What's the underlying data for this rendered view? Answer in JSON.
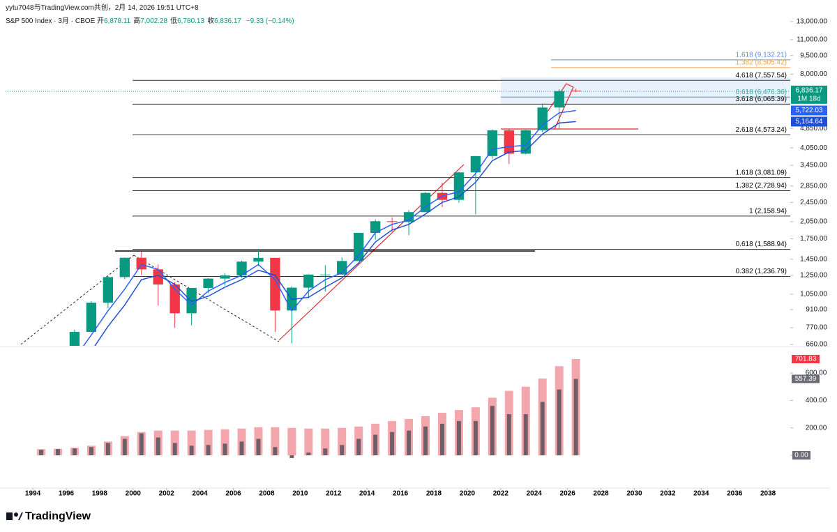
{
  "header": {
    "attribution": "yytu7048与TradingView.com共创，2月 14, 2026 19:51 UTC+8",
    "symbol": "S&P 500 Index · 3月 · CBOE",
    "ohlc": [
      {
        "label": "开",
        "value": "6,878.11"
      },
      {
        "label": "高",
        "value": "7,002.28"
      },
      {
        "label": "低",
        "value": "6,780.13"
      },
      {
        "label": "收",
        "value": "6,836.17"
      }
    ],
    "change": "−9.33 (−0.14%)"
  },
  "chart_data": [
    {
      "type": "candlestick",
      "log_scale": true,
      "up_color": "#089981",
      "down_color": "#f23645",
      "x": [
        1994,
        1995,
        1996,
        1997,
        1998,
        1999,
        2000,
        2001,
        2002,
        2003,
        2004,
        2005,
        2006,
        2007,
        2008,
        2009,
        2010,
        2011,
        2012,
        2013,
        2014,
        2015,
        2016,
        2017,
        2018,
        2019,
        2020,
        2021,
        2022,
        2023,
        2024,
        2025,
        2026
      ],
      "open": [
        466,
        459,
        616,
        741,
        970,
        1229,
        1469,
        1320,
        1148,
        880,
        1112,
        1212,
        1248,
        1418,
        1468,
        903,
        1115,
        1258,
        1258,
        1426,
        1848,
        2059,
        2044,
        2239,
        2674,
        2507,
        3231,
        3756,
        4766,
        3840,
        4770,
        5882,
        6878.11
      ],
      "high": [
        482,
        621,
        757,
        983,
        1244,
        1473,
        1553,
        1383,
        1176,
        1112,
        1217,
        1275,
        1431,
        1576,
        1471,
        1130,
        1263,
        1371,
        1475,
        1849,
        2094,
        2135,
        2277,
        2695,
        2941,
        3248,
        3760,
        4808,
        4819,
        4794,
        6099,
        6950,
        7002.28
      ],
      "low": [
        438,
        459,
        598,
        737,
        923,
        1205,
        1254,
        944,
        769,
        788,
        1060,
        1137,
        1219,
        1364,
        741,
        667,
        1011,
        1075,
        1259,
        1426,
        1737,
        1867,
        1810,
        2239,
        2346,
        2444,
        2192,
        3663,
        3492,
        3809,
        4683,
        4835,
        6780.13
      ],
      "close": [
        459,
        616,
        741,
        970,
        1229,
        1469,
        1320,
        1148,
        880,
        1112,
        1212,
        1248,
        1418,
        1468,
        903,
        1115,
        1258,
        1258,
        1426,
        1848,
        2059,
        2044,
        2239,
        2674,
        2507,
        3231,
        3756,
        4766,
        3840,
        4770,
        5882,
        6845,
        6836.17
      ],
      "series": [
        {
          "name": "MA fast",
          "color": "#2962ff",
          "values": [
            420,
            480,
            580,
            720,
            900,
            1100,
            1380,
            1320,
            1100,
            950,
            1080,
            1170,
            1250,
            1380,
            1200,
            900,
            1080,
            1200,
            1280,
            1500,
            1850,
            2000,
            2080,
            2350,
            2600,
            2700,
            3200,
            4000,
            4100,
            4150,
            5000,
            5600,
            5722.03
          ],
          "value_labels": [
            null,
            null,
            null,
            null,
            null,
            null,
            null,
            null,
            null,
            null,
            null,
            null,
            null,
            null,
            null,
            null,
            null,
            null,
            null,
            null,
            null,
            null,
            null,
            null,
            null,
            null,
            null,
            null,
            null,
            null,
            null,
            null,
            "5,722.03"
          ]
        },
        {
          "name": "MA slow",
          "color": "#1e4fd8",
          "values": [
            380,
            420,
            500,
            620,
            780,
            950,
            1200,
            1250,
            1150,
            980,
            1030,
            1120,
            1200,
            1310,
            1250,
            1000,
            1020,
            1120,
            1220,
            1400,
            1700,
            1900,
            2000,
            2200,
            2450,
            2580,
            2950,
            3600,
            3900,
            3950,
            4600,
            5100,
            5164.64
          ],
          "value_labels": [
            null,
            null,
            null,
            null,
            null,
            null,
            null,
            null,
            null,
            null,
            null,
            null,
            null,
            null,
            null,
            null,
            null,
            null,
            null,
            null,
            null,
            null,
            null,
            null,
            null,
            null,
            null,
            null,
            null,
            null,
            null,
            null,
            "5,164.64"
          ]
        }
      ],
      "last_price": {
        "value": 6836.17,
        "label": "6,836.17"
      },
      "countdown": "1M 18d",
      "fib_levels": [
        {
          "value": 1236.79,
          "label": "0.382 (1,236.79)"
        },
        {
          "value": 1588.94,
          "label": "0.618 (1,588.94)"
        },
        {
          "value": 2158.94,
          "label": "1 (2,158.94)"
        },
        {
          "value": 2728.94,
          "label": "1.382 (2,728.94)"
        },
        {
          "value": 3081.09,
          "label": "1.618 (3,081.09)"
        },
        {
          "value": 4573.24,
          "label": "2.618 (4,573.24)"
        },
        {
          "value": 6065.39,
          "label": "3.618 (6,065.39)"
        },
        {
          "value": 7557.54,
          "label": "4.618 (7,557.54)"
        }
      ],
      "fib_extension": [
        {
          "value": 9132.21,
          "label": "1.618 (9,132.21)",
          "color": "#5b8bd9"
        },
        {
          "value": 8505.42,
          "label": "1.382 (8,505.42)",
          "color": "#f4a340"
        },
        {
          "value": 6476.36,
          "label": "0.618 (6,476.36)",
          "color": "#3aa7a0"
        }
      ],
      "xlim": [
        1992.37,
        2039.33
      ],
      "xticks": [
        1994,
        1996,
        1998,
        2000,
        2002,
        2004,
        2006,
        2008,
        2010,
        2012,
        2014,
        2016,
        2018,
        2020,
        2022,
        2024,
        2026,
        2028,
        2030,
        2032,
        2034,
        2036,
        2038
      ],
      "ylim": [
        660,
        13000
      ],
      "yticks": [
        {
          "value": 13000,
          "label": "13,000.00"
        },
        {
          "value": 11000,
          "label": "11,000.00"
        },
        {
          "value": 9500,
          "label": "9,500.00"
        },
        {
          "value": 8000,
          "label": "8,000.00"
        },
        {
          "value": 4850,
          "label": "4,850.00"
        },
        {
          "value": 4050,
          "label": "4,050.00"
        },
        {
          "value": 3450,
          "label": "3,450.00"
        },
        {
          "value": 2850,
          "label": "2,850.00"
        },
        {
          "value": 2450,
          "label": "2,450.00"
        },
        {
          "value": 2050,
          "label": "2,050.00"
        },
        {
          "value": 1750,
          "label": "1,750.00"
        },
        {
          "value": 1450,
          "label": "1,450.00"
        },
        {
          "value": 1250,
          "label": "1,250.00"
        },
        {
          "value": 1050,
          "label": "1,050.00"
        },
        {
          "value": 910,
          "label": "910.00"
        },
        {
          "value": 770,
          "label": "770.00"
        },
        {
          "value": 660,
          "label": "660.00"
        }
      ]
    },
    {
      "type": "bar",
      "x": [
        1994,
        1995,
        1996,
        1997,
        1998,
        1999,
        2000,
        2001,
        2002,
        2003,
        2004,
        2005,
        2006,
        2007,
        2008,
        2009,
        2010,
        2011,
        2012,
        2013,
        2014,
        2015,
        2016,
        2017,
        2018,
        2019,
        2020,
        2021,
        2022,
        2023,
        2024,
        2025,
        2026
      ],
      "series": [
        {
          "name": "upper",
          "color": "#f4a6ad",
          "values": [
            45,
            48,
            55,
            70,
            100,
            140,
            170,
            180,
            180,
            180,
            185,
            190,
            195,
            205,
            205,
            200,
            195,
            195,
            200,
            210,
            230,
            250,
            265,
            285,
            310,
            330,
            350,
            420,
            470,
            500,
            560,
            650,
            701.83
          ]
        },
        {
          "name": "lower",
          "color": "#6e5f66",
          "values": [
            40,
            45,
            50,
            60,
            90,
            120,
            160,
            130,
            90,
            70,
            75,
            85,
            100,
            120,
            60,
            -20,
            20,
            50,
            75,
            120,
            150,
            170,
            180,
            210,
            230,
            250,
            250,
            360,
            300,
            300,
            390,
            480,
            557.39
          ]
        }
      ],
      "ylim": [
        -30,
        760
      ],
      "yticks": [
        {
          "value": 0,
          "label": "0.00"
        },
        {
          "value": 200,
          "label": "200.00"
        },
        {
          "value": 400,
          "label": "400.00"
        },
        {
          "value": 600,
          "label": "600.00"
        }
      ]
    }
  ],
  "footer": {
    "brand": "TradingView"
  }
}
